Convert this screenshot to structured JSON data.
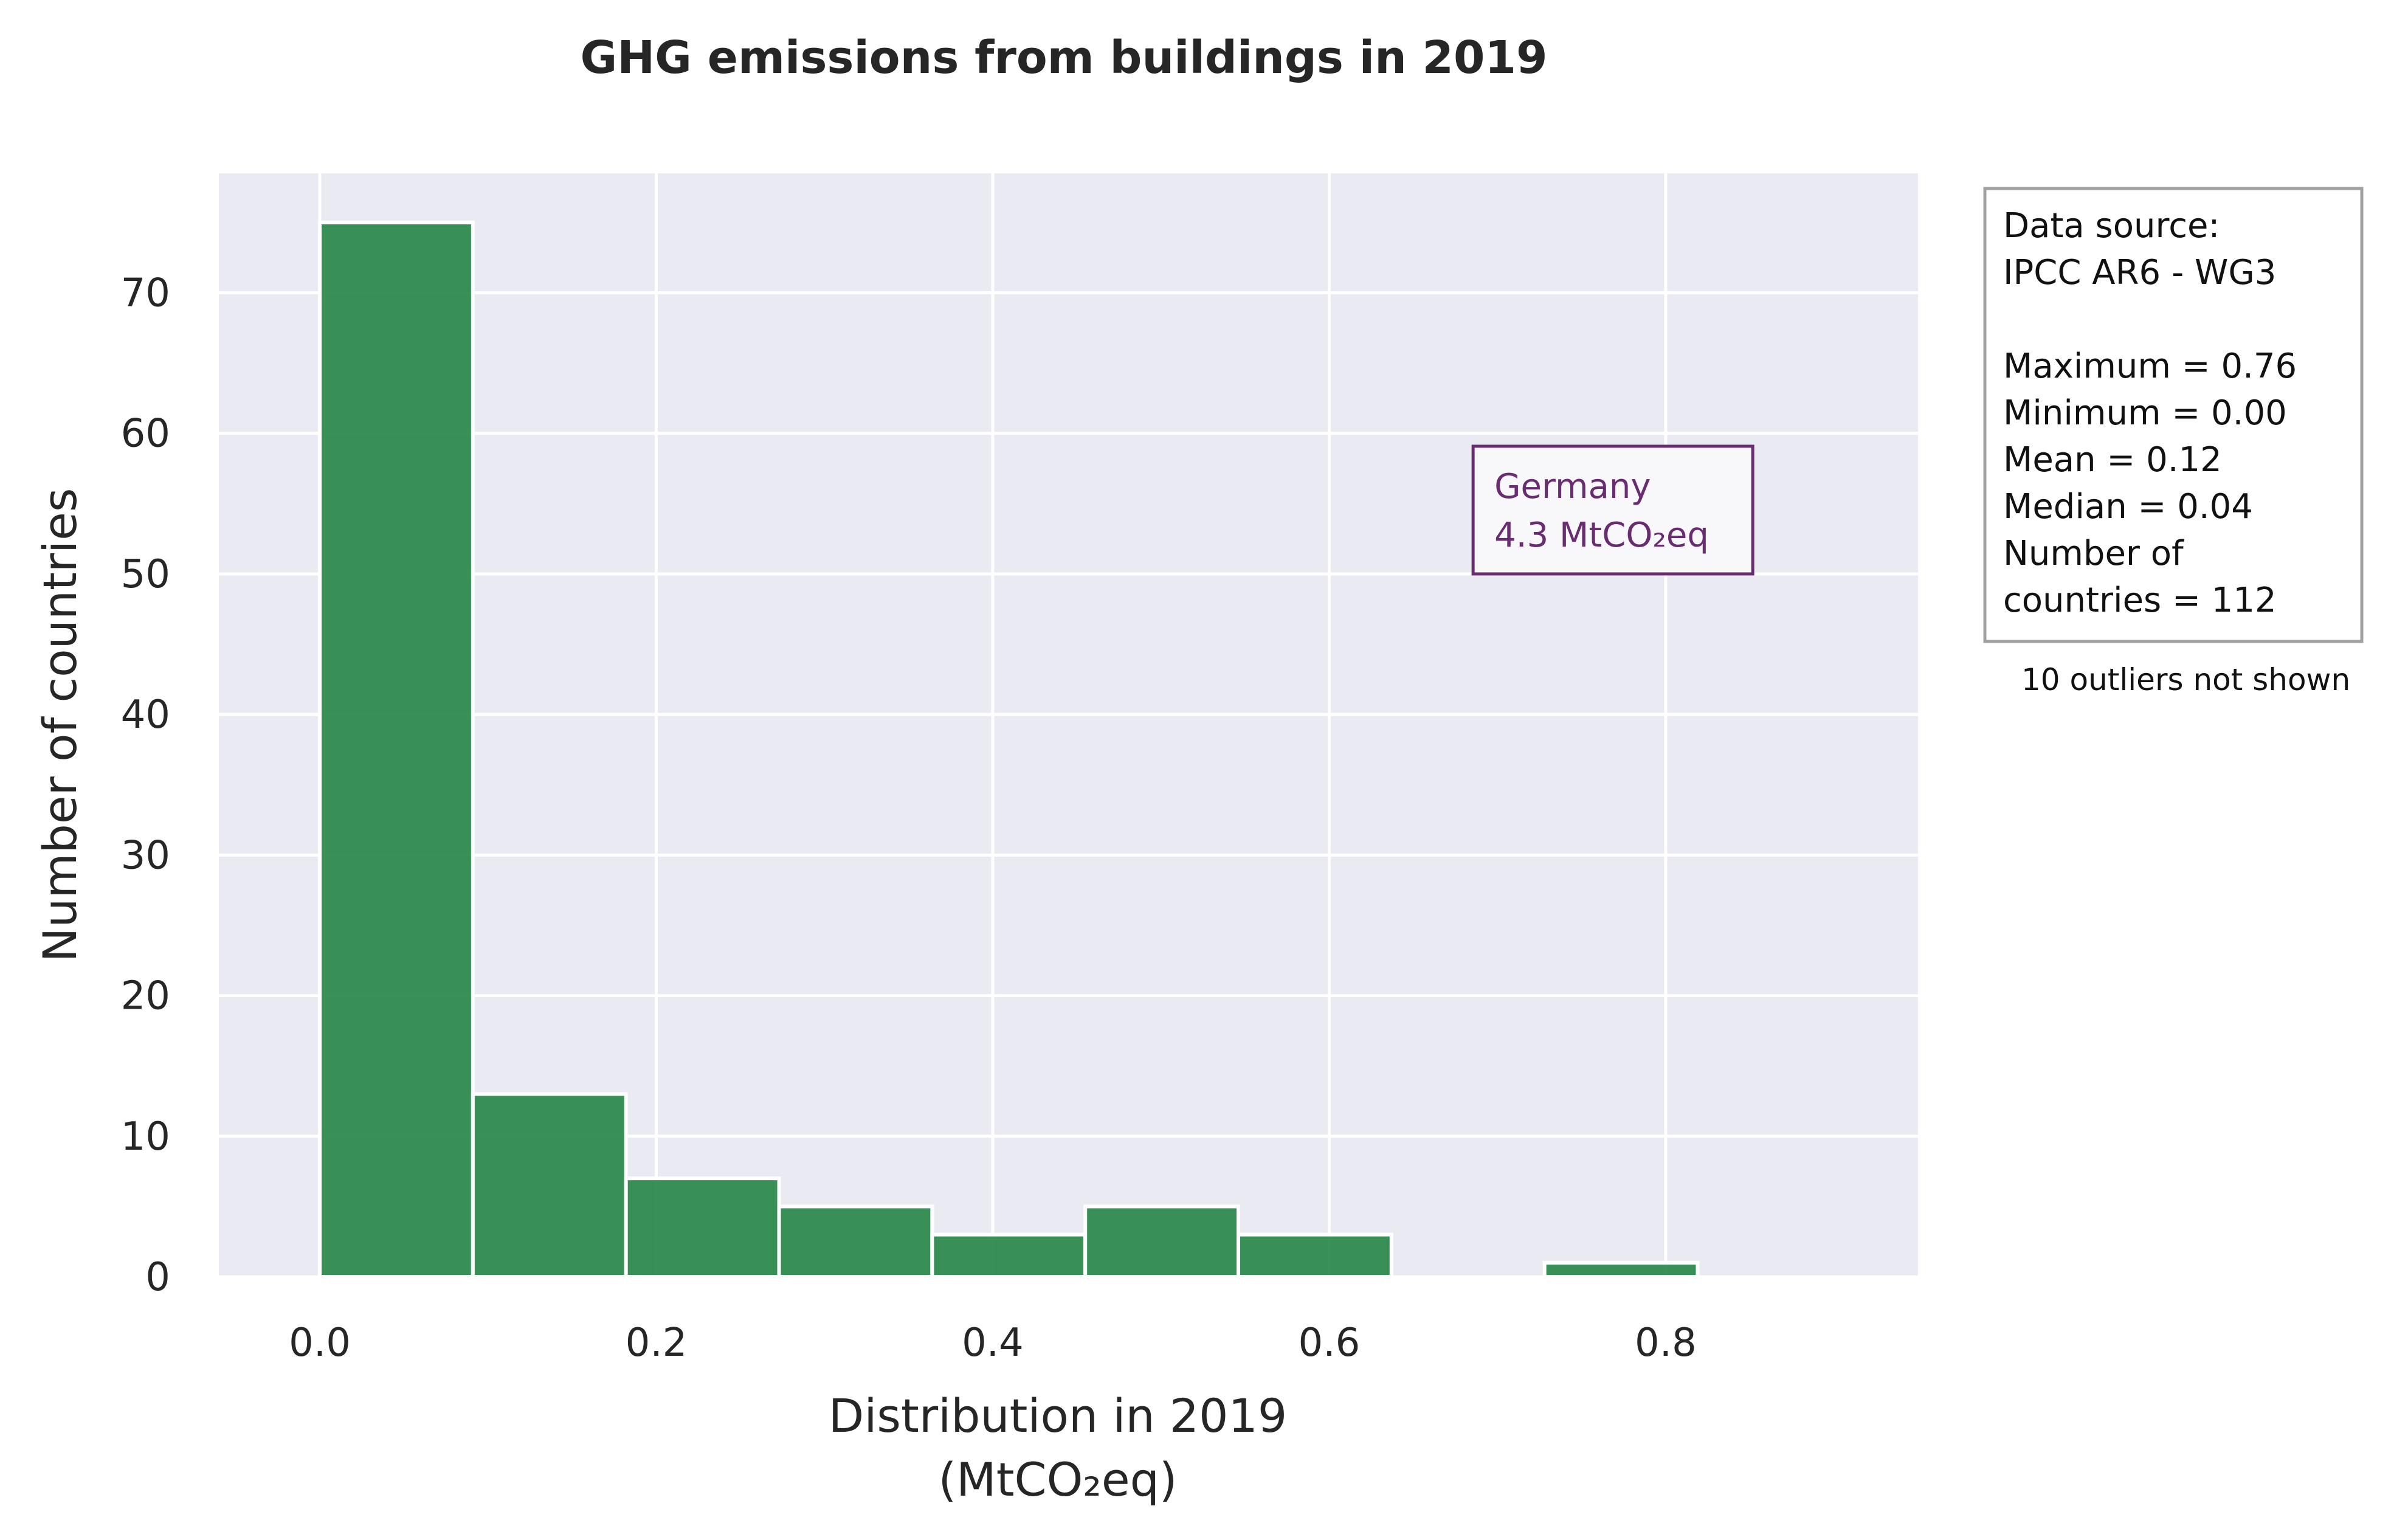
{
  "chart_data": {
    "type": "bar",
    "title": "GHG emissions from buildings in 2019",
    "xlabel": [
      "Distribution in 2019",
      "(MtCO₂eq)"
    ],
    "ylabel": "Number of countries",
    "xlim": [
      -0.06,
      0.95
    ],
    "ylim": [
      0,
      78.5
    ],
    "xticks": [
      0.0,
      0.2,
      0.4,
      0.6,
      0.8
    ],
    "xtick_labels": [
      "0.0",
      "0.2",
      "0.4",
      "0.6",
      "0.8"
    ],
    "yticks": [
      0,
      10,
      20,
      30,
      40,
      50,
      60,
      70
    ],
    "ytick_labels": [
      "0",
      "10",
      "20",
      "30",
      "40",
      "50",
      "60",
      "70"
    ],
    "bin_edges": [
      0.0,
      0.091,
      0.182,
      0.273,
      0.364,
      0.455,
      0.546,
      0.637,
      0.728,
      0.819
    ],
    "values": [
      75,
      13,
      7,
      5,
      3,
      5,
      3,
      0,
      1
    ],
    "grid": true,
    "colors": {
      "bar": "#2e8b4e",
      "bar_edge": "#ffffff",
      "plot_background": "#eaeaf2",
      "grid": "#ffffff",
      "annotation": "#6a2c70",
      "stats_border": "#a0a0a0"
    },
    "annotation": {
      "lines": [
        "Germany",
        "4.3 MtCO₂eq"
      ],
      "x": 0.7,
      "y": 50
    },
    "stats_box": {
      "lines": [
        "Data source:",
        " IPCC AR6 - WG3",
        "",
        " Maximum  = 0.76",
        " Minimum   = 0.00",
        " Mean       = 0.12",
        " Median    = 0.04",
        " Number of",
        " countries  = 112"
      ],
      "note": "10 outliers not shown"
    }
  }
}
